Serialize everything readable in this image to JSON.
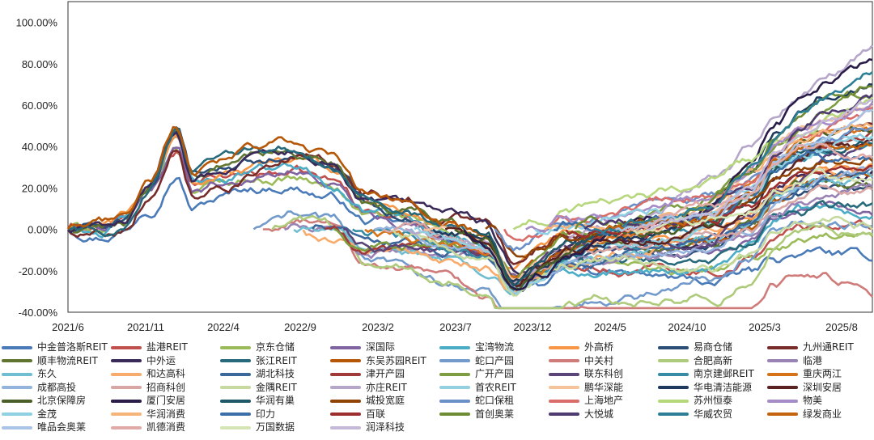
{
  "chart_data": {
    "type": "line",
    "x": [
      "2021/6",
      "2021/11",
      "2022/4",
      "2022/9",
      "2023/2",
      "2023/7",
      "2023/12",
      "2024/5",
      "2024/10",
      "2025/3",
      "2025/8"
    ],
    "yticks": [
      "100.00%",
      "80.00%",
      "60.00%",
      "40.00%",
      "20.00%",
      "0.00%",
      "-20.00%",
      "-40.00%"
    ],
    "ylim": [
      -40,
      110
    ],
    "grid": false,
    "legend_position": "bottom",
    "series": [
      {
        "name": "中金普洛斯REIT",
        "color": "#4a7ab8",
        "end": -18
      },
      {
        "name": "盐港REIT",
        "color": "#c0504d",
        "end": 2
      },
      {
        "name": "京东仓储",
        "color": "#9bbb59",
        "end": -8
      },
      {
        "name": "深国际",
        "color": "#8064a2",
        "end": 10
      },
      {
        "name": "宝湾物流",
        "color": "#4bacc6",
        "end": 8
      },
      {
        "name": "外高桥",
        "color": "#f79646",
        "end": 28
      },
      {
        "name": "易商仓储",
        "color": "#2c4d75",
        "end": 18
      },
      {
        "name": "九州通REIT",
        "color": "#772c2a",
        "end": 52
      },
      {
        "name": "顺丰物流REIT",
        "color": "#5f7530",
        "end": 22
      },
      {
        "name": "中外运",
        "color": "#3a2a5a",
        "end": 30
      },
      {
        "name": "张江REIT",
        "color": "#276a7c",
        "end": 12
      },
      {
        "name": "东吴苏园REIT",
        "color": "#b65708",
        "end": 25
      },
      {
        "name": "蛇口产园",
        "color": "#729aca",
        "end": 6
      },
      {
        "name": "中关村",
        "color": "#cf7b79",
        "end": -28
      },
      {
        "name": "合肥高新",
        "color": "#aecb7c",
        "end": 0
      },
      {
        "name": "临港",
        "color": "#9983b5",
        "end": 14
      },
      {
        "name": "东久",
        "color": "#6fbdd1",
        "end": 20
      },
      {
        "name": "和达高科",
        "color": "#f9ab6b",
        "end": 34
      },
      {
        "name": "湖北科技",
        "color": "#3a679c",
        "end": 24
      },
      {
        "name": "津开产园",
        "color": "#9f3a38",
        "end": 44
      },
      {
        "name": "广开产园",
        "color": "#7e9c40",
        "end": 62
      },
      {
        "name": "联东科创",
        "color": "#5b4477",
        "end": 36
      },
      {
        "name": "南京建邺REIT",
        "color": "#358ca4",
        "end": 46
      },
      {
        "name": "重庆两江",
        "color": "#d67319",
        "end": 40
      },
      {
        "name": "成都高投",
        "color": "#94b4dd",
        "end": 26
      },
      {
        "name": "招商科创",
        "color": "#d8a6a4",
        "end": 16
      },
      {
        "name": "金隅REIT",
        "color": "#c6d99f",
        "end": 4
      },
      {
        "name": "亦庄REIT",
        "color": "#b5a6ca",
        "end": 86
      },
      {
        "name": "首农REIT",
        "color": "#94d0e0",
        "end": 50
      },
      {
        "name": "鹏华深能",
        "color": "#f6c49b",
        "end": 58
      },
      {
        "name": "华电清洁能源",
        "color": "#1f3a5c",
        "end": 74
      },
      {
        "name": "深圳安居",
        "color": "#5a2220",
        "end": 38
      },
      {
        "name": "北京保障房",
        "color": "#4a5e27",
        "end": 54
      },
      {
        "name": "厦门安居",
        "color": "#2a1c48",
        "end": 80
      },
      {
        "name": "华润有巢",
        "color": "#1f5868",
        "end": 42
      },
      {
        "name": "城投宽庭",
        "color": "#8f4406",
        "end": 32
      },
      {
        "name": "蛇口保租",
        "color": "#6b8fc7",
        "end": 48
      },
      {
        "name": "上海地产",
        "color": "#d96d6a",
        "end": 56
      },
      {
        "name": "苏州恒泰",
        "color": "#b6d77c",
        "end": 60
      },
      {
        "name": "物美",
        "color": "#a58cc6",
        "end": 66
      },
      {
        "name": "金茂",
        "color": "#8fd1e3",
        "end": 44
      },
      {
        "name": "华润消费",
        "color": "#f7b47a",
        "end": 52
      },
      {
        "name": "印力",
        "color": "#3c6fa8",
        "end": 30
      },
      {
        "name": "百联",
        "color": "#9c2f2d",
        "end": 28
      },
      {
        "name": "首创奥莱",
        "color": "#6f8c34",
        "end": 70
      },
      {
        "name": "大悦城",
        "color": "#4d3a6e",
        "end": 64
      },
      {
        "name": "华威农贸",
        "color": "#2d7f96",
        "end": 76
      },
      {
        "name": "绿发商业",
        "color": "#c4630e",
        "end": 36
      },
      {
        "name": "唯品会奥莱",
        "color": "#a9c4e6",
        "end": 58
      },
      {
        "name": "凯德消费",
        "color": "#e0aaa8",
        "end": 40
      },
      {
        "name": "万国数据",
        "color": "#d4e4b4",
        "end": 22
      },
      {
        "name": "润泽科技",
        "color": "#c5b9d9",
        "end": 60
      }
    ]
  }
}
